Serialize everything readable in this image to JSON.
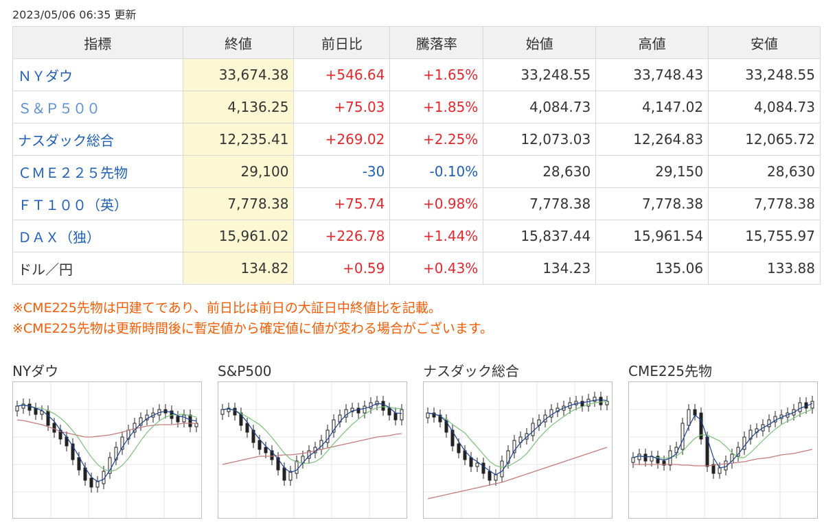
{
  "updated": "2023/05/06 06:35 更新",
  "headers": [
    "指標",
    "終値",
    "前日比",
    "騰落率",
    "始値",
    "高値",
    "安値"
  ],
  "rows": [
    {
      "name": "ＮＹダウ",
      "link": "dark",
      "close": "33,674.38",
      "change": "+546.64",
      "rate": "+1.65%",
      "open": "33,248.55",
      "high": "33,748.43",
      "low": "33,248.55",
      "dir": "up"
    },
    {
      "name": "Ｓ＆Ｐ５００",
      "link": "light",
      "close": "4,136.25",
      "change": "+75.03",
      "rate": "+1.85%",
      "open": "4,084.73",
      "high": "4,147.02",
      "low": "4,084.73",
      "dir": "up"
    },
    {
      "name": "ナスダック総合",
      "link": "dark",
      "close": "12,235.41",
      "change": "+269.02",
      "rate": "+2.25%",
      "open": "12,073.03",
      "high": "12,264.83",
      "low": "12,065.72",
      "dir": "up"
    },
    {
      "name": "ＣＭＥ２２５先物",
      "link": "dark",
      "close": "29,100",
      "change": "-30",
      "rate": "-0.10%",
      "open": "28,630",
      "high": "29,150",
      "low": "28,630",
      "dir": "down"
    },
    {
      "name": "ＦＴ１００（英）",
      "link": "dark",
      "close": "7,778.38",
      "change": "+75.74",
      "rate": "+0.98%",
      "open": "7,778.38",
      "high": "7,778.38",
      "low": "7,778.38",
      "dir": "up"
    },
    {
      "name": "ＤＡＸ（独）",
      "link": "dark",
      "close": "15,961.02",
      "change": "+226.78",
      "rate": "+1.44%",
      "open": "15,837.44",
      "high": "15,961.54",
      "low": "15,755.97",
      "dir": "up"
    },
    {
      "name": "ドル／円",
      "link": "none",
      "close": "134.82",
      "change": "+0.59",
      "rate": "+0.43%",
      "open": "134.23",
      "high": "135.06",
      "low": "133.88",
      "dir": "up"
    }
  ],
  "notes": [
    "※CME225先物は円建てであり、前日比は前日の大証日中終値比を記載。",
    "※CME225先物は更新時間後に暫定値から確定値に値が変わる場合がございます。"
  ],
  "charts": [
    {
      "title": "NYダウ"
    },
    {
      "title": "S&P500"
    },
    {
      "title": "ナスダック総合"
    },
    {
      "title": "CME225先物"
    }
  ],
  "colors": {
    "up": "#e0282e",
    "down": "#1f5fb4",
    "note": "#f25c05",
    "close_bg": "#fcf8d3",
    "ma_short": "#1a3f8f",
    "ma_mid": "#7cc07a",
    "ma_long": "#c47a7a"
  }
}
